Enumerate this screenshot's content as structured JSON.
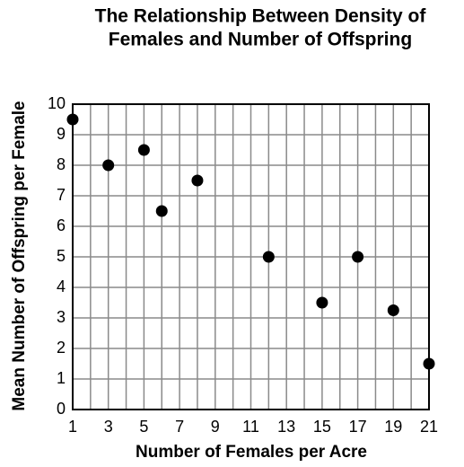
{
  "chart_data": {
    "type": "scatter",
    "title": [
      "The Relationship Between Density of",
      "Females and Number of Offspring"
    ],
    "xlabel": "Number of Females per Acre",
    "ylabel": "Mean Number of Offspring per Female",
    "x": [
      1,
      3,
      5,
      6,
      8,
      12,
      15,
      17,
      19,
      21
    ],
    "values": [
      9.5,
      8,
      8.5,
      6.5,
      7.5,
      5,
      3.5,
      5,
      3.25,
      1.5
    ],
    "color": "#000000",
    "xlim": [
      1,
      21
    ],
    "xticks": [
      1,
      3,
      5,
      7,
      9,
      11,
      13,
      15,
      17,
      19,
      21
    ],
    "xminorticks": [
      2,
      4,
      6,
      8,
      10,
      12,
      14,
      16,
      18,
      20
    ],
    "ylim": [
      0,
      10
    ],
    "yticks": [
      0,
      1,
      2,
      3,
      4,
      5,
      6,
      7,
      8,
      9,
      10
    ],
    "grid": true
  }
}
